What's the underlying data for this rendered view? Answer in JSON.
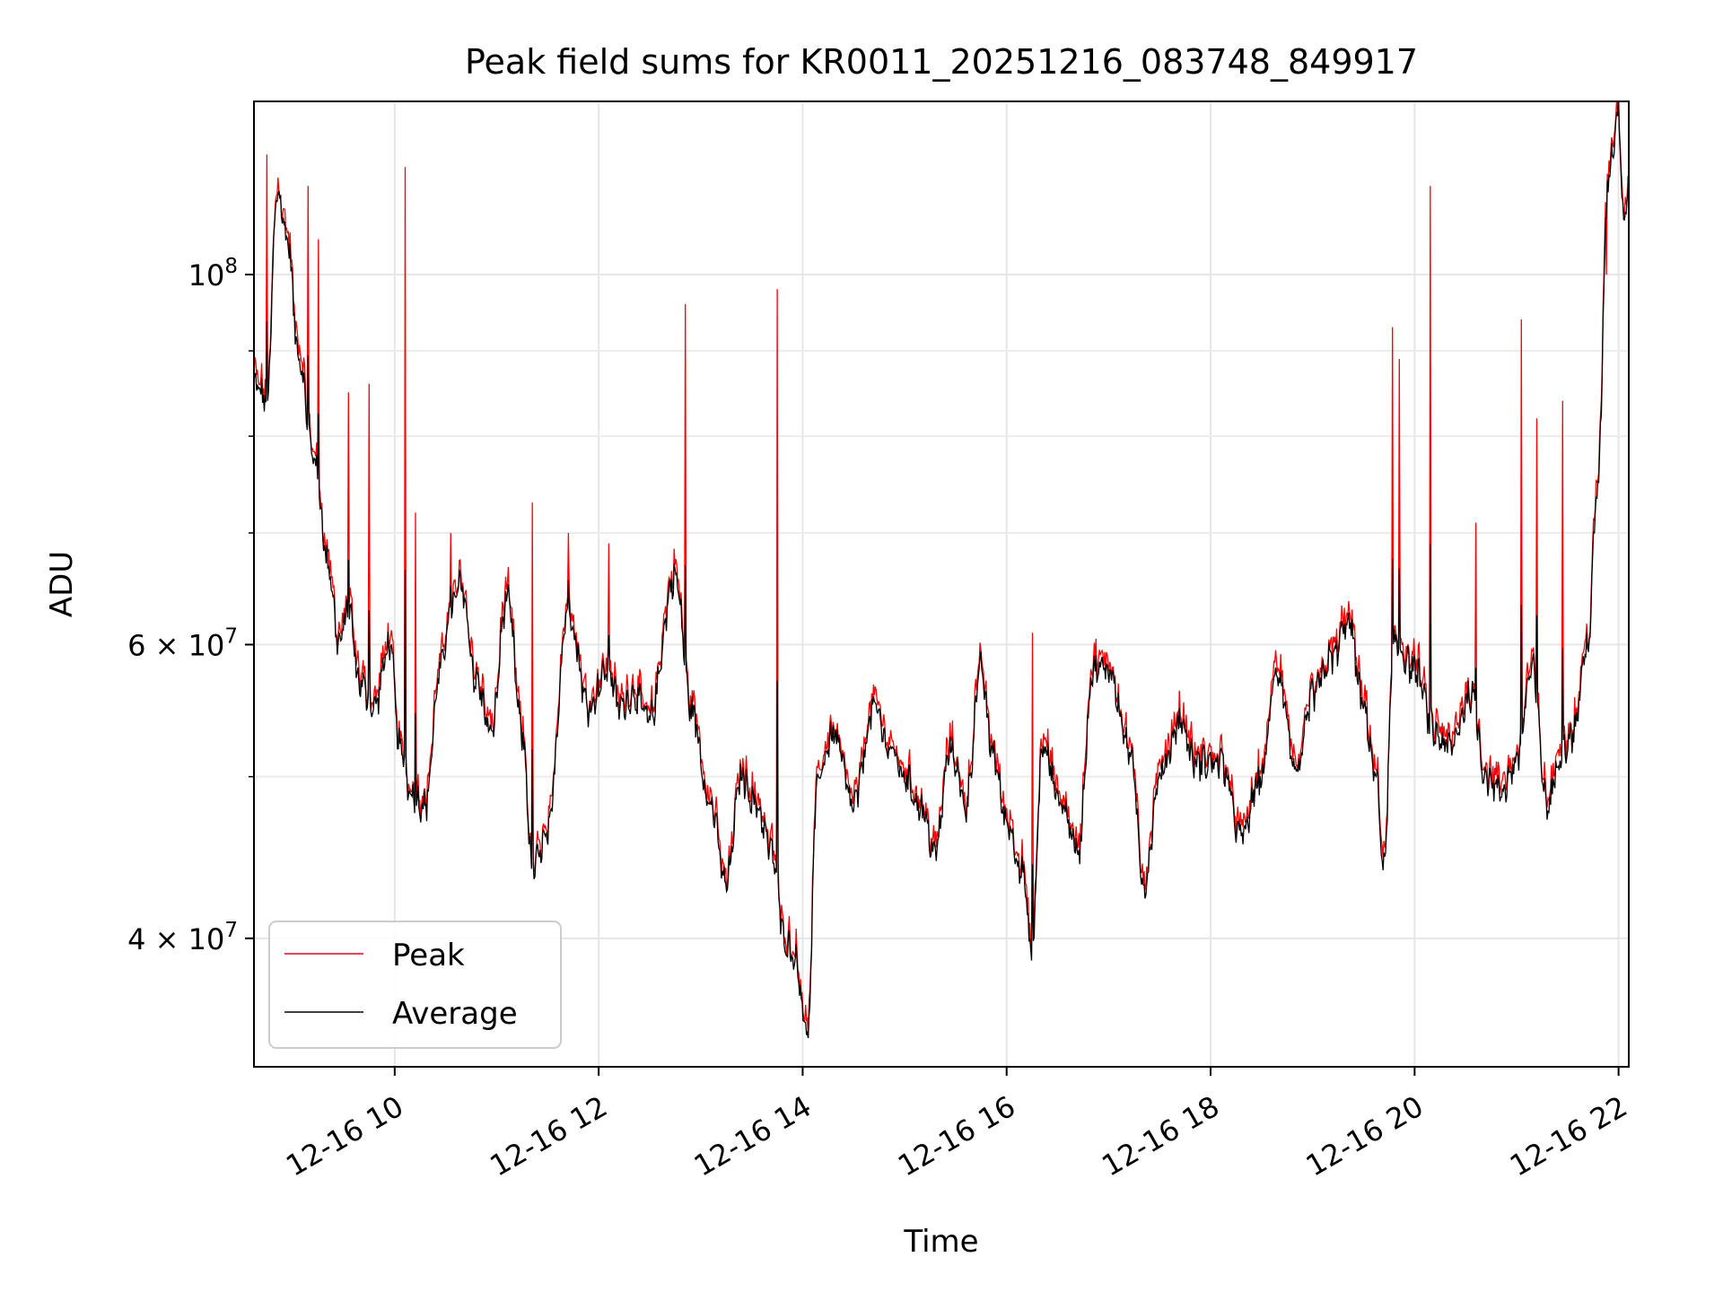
{
  "chart_data": {
    "type": "line",
    "title": "Peak field sums for KR0011_20251216_083748_849917",
    "xlabel": "Time",
    "ylabel": "ADU",
    "yscale": "log",
    "xlim": [
      8.62,
      22.1
    ],
    "ylim": [
      33500000,
      127000000
    ],
    "x_ticks": [
      {
        "value": 10,
        "label": "12-16 10"
      },
      {
        "value": 12,
        "label": "12-16 12"
      },
      {
        "value": 14,
        "label": "12-16 14"
      },
      {
        "value": 16,
        "label": "12-16 16"
      },
      {
        "value": 18,
        "label": "12-16 18"
      },
      {
        "value": 20,
        "label": "12-16 20"
      },
      {
        "value": 22,
        "label": "12-16 22"
      }
    ],
    "y_major_ticks": [
      {
        "value": 100000000,
        "base": "10",
        "exp": "8",
        "mant": ""
      },
      {
        "value": 60000000,
        "base": "10",
        "exp": "7",
        "mant": "6 × "
      },
      {
        "value": 40000000,
        "base": "10",
        "exp": "7",
        "mant": "4 × "
      }
    ],
    "y_minor_grid": [
      50000000,
      70000000,
      80000000,
      90000000
    ],
    "grid": true,
    "legend": {
      "position": "lower-left",
      "entries": [
        "Peak",
        "Average"
      ]
    },
    "series_colors": {
      "Peak": "#ff0000",
      "Average": "#000000"
    },
    "average_keypoints": [
      [
        8.62,
        86000000
      ],
      [
        8.75,
        84000000
      ],
      [
        8.85,
        112000000
      ],
      [
        8.95,
        105000000
      ],
      [
        9.05,
        90000000
      ],
      [
        9.2,
        78000000
      ],
      [
        9.35,
        67000000
      ],
      [
        9.45,
        60000000
      ],
      [
        9.55,
        63000000
      ],
      [
        9.65,
        57000000
      ],
      [
        9.8,
        55000000
      ],
      [
        9.95,
        60000000
      ],
      [
        10.05,
        52000000
      ],
      [
        10.15,
        49000000
      ],
      [
        10.3,
        48000000
      ],
      [
        10.45,
        58000000
      ],
      [
        10.55,
        63000000
      ],
      [
        10.65,
        65000000
      ],
      [
        10.8,
        57000000
      ],
      [
        10.95,
        53000000
      ],
      [
        11.1,
        64000000
      ],
      [
        11.25,
        53000000
      ],
      [
        11.35,
        44000000
      ],
      [
        11.5,
        46000000
      ],
      [
        11.7,
        63000000
      ],
      [
        11.9,
        55000000
      ],
      [
        12.1,
        58000000
      ],
      [
        12.2,
        55000000
      ],
      [
        12.35,
        56000000
      ],
      [
        12.5,
        54000000
      ],
      [
        12.75,
        66000000
      ],
      [
        12.9,
        55000000
      ],
      [
        13.1,
        48000000
      ],
      [
        13.25,
        43000000
      ],
      [
        13.4,
        50000000
      ],
      [
        13.55,
        48000000
      ],
      [
        13.7,
        45000000
      ],
      [
        13.82,
        40000000
      ],
      [
        13.92,
        39000000
      ],
      [
        14.05,
        35000000
      ],
      [
        14.15,
        50000000
      ],
      [
        14.3,
        53000000
      ],
      [
        14.5,
        48000000
      ],
      [
        14.7,
        55000000
      ],
      [
        14.85,
        52000000
      ],
      [
        15.0,
        50000000
      ],
      [
        15.15,
        48000000
      ],
      [
        15.3,
        45000000
      ],
      [
        15.45,
        52000000
      ],
      [
        15.6,
        48000000
      ],
      [
        15.75,
        58000000
      ],
      [
        15.85,
        52000000
      ],
      [
        16.0,
        47000000
      ],
      [
        16.15,
        44000000
      ],
      [
        16.25,
        39000000
      ],
      [
        16.35,
        52000000
      ],
      [
        16.55,
        48000000
      ],
      [
        16.7,
        45000000
      ],
      [
        16.85,
        58000000
      ],
      [
        17.0,
        58000000
      ],
      [
        17.2,
        52000000
      ],
      [
        17.35,
        43000000
      ],
      [
        17.5,
        50000000
      ],
      [
        17.7,
        54000000
      ],
      [
        17.85,
        51000000
      ],
      [
        18.1,
        51000000
      ],
      [
        18.3,
        46000000
      ],
      [
        18.5,
        50000000
      ],
      [
        18.65,
        58000000
      ],
      [
        18.85,
        50000000
      ],
      [
        19.0,
        56000000
      ],
      [
        19.2,
        59000000
      ],
      [
        19.35,
        62000000
      ],
      [
        19.5,
        55000000
      ],
      [
        19.62,
        50000000
      ],
      [
        19.7,
        44000000
      ],
      [
        19.8,
        60000000
      ],
      [
        20.0,
        58000000
      ],
      [
        20.2,
        53000000
      ],
      [
        20.35,
        52000000
      ],
      [
        20.55,
        56000000
      ],
      [
        20.7,
        50000000
      ],
      [
        20.85,
        49000000
      ],
      [
        21.0,
        51000000
      ],
      [
        21.15,
        58000000
      ],
      [
        21.3,
        48000000
      ],
      [
        21.45,
        52000000
      ],
      [
        21.55,
        53000000
      ],
      [
        21.7,
        60000000
      ],
      [
        21.8,
        75000000
      ],
      [
        21.9,
        115000000
      ],
      [
        22.0,
        125000000
      ],
      [
        22.05,
        108000000
      ],
      [
        22.1,
        113000000
      ]
    ],
    "peak_spikes": [
      [
        8.75,
        118000000
      ],
      [
        9.15,
        113000000
      ],
      [
        9.25,
        105000000
      ],
      [
        9.55,
        85000000
      ],
      [
        9.75,
        86000000
      ],
      [
        10.1,
        116000000
      ],
      [
        10.2,
        72000000
      ],
      [
        10.55,
        70000000
      ],
      [
        11.35,
        73000000
      ],
      [
        11.7,
        70000000
      ],
      [
        12.1,
        69000000
      ],
      [
        12.85,
        96000000
      ],
      [
        13.75,
        98000000
      ],
      [
        16.25,
        61000000
      ],
      [
        19.78,
        93000000
      ],
      [
        19.85,
        89000000
      ],
      [
        20.15,
        113000000
      ],
      [
        20.6,
        71000000
      ],
      [
        21.05,
        94000000
      ],
      [
        21.2,
        82000000
      ],
      [
        21.45,
        84000000
      ],
      [
        21.88,
        100000000
      ]
    ]
  }
}
